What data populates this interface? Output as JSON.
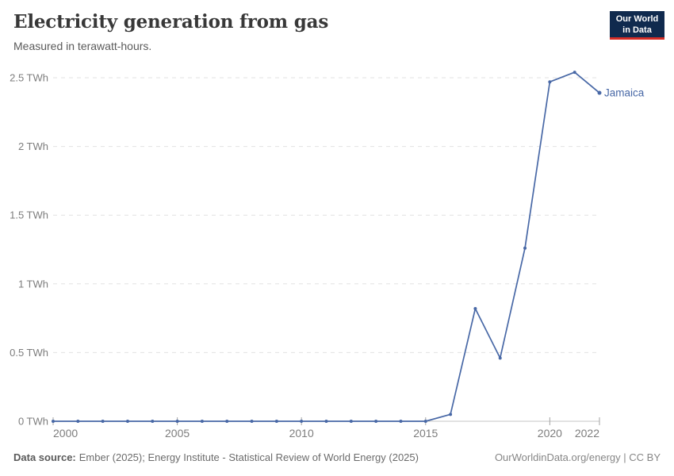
{
  "header": {
    "title": "Electricity generation from gas",
    "subtitle": "Measured in terawatt-hours.",
    "logo_line1": "Our World",
    "logo_line2": "in Data"
  },
  "chart_data": {
    "type": "line",
    "title": "Electricity generation from gas",
    "subtitle": "Measured in terawatt-hours.",
    "unit": "TWh",
    "xlim": [
      2000,
      2022
    ],
    "ylim": [
      0,
      2.5
    ],
    "grid": "horizontal-dashed",
    "legend_position": "end-of-line-label",
    "x_ticks": [
      2000,
      2005,
      2010,
      2015,
      2020,
      2022
    ],
    "y_ticks": [
      {
        "value": 0,
        "label": "0 TWh"
      },
      {
        "value": 0.5,
        "label": "0.5 TWh"
      },
      {
        "value": 1,
        "label": "1 TWh"
      },
      {
        "value": 1.5,
        "label": "1.5 TWh"
      },
      {
        "value": 2,
        "label": "2 TWh"
      },
      {
        "value": 2.5,
        "label": "2.5 TWh"
      }
    ],
    "series": [
      {
        "name": "Jamaica",
        "color": "#4868a6",
        "x": [
          2000,
          2001,
          2002,
          2003,
          2004,
          2005,
          2006,
          2007,
          2008,
          2009,
          2010,
          2011,
          2012,
          2013,
          2014,
          2015,
          2016,
          2017,
          2018,
          2019,
          2020,
          2021,
          2022
        ],
        "values": [
          0,
          0,
          0,
          0,
          0,
          0,
          0,
          0,
          0,
          0,
          0,
          0,
          0,
          0,
          0,
          0,
          0.05,
          0.82,
          0.46,
          1.26,
          2.47,
          2.54,
          2.39
        ]
      }
    ]
  },
  "footer": {
    "source_label": "Data source:",
    "source_text": "Ember (2025); Energy Institute - Statistical Review of World Energy (2025)",
    "credit": "OurWorldinData.org/energy | CC BY"
  },
  "colors": {
    "line": "#4868a6",
    "logo_navy": "#102a4e",
    "logo_red": "#d62d26",
    "grid": "#e2e2e2",
    "axis": "#c6c6c6",
    "tick": "#a3a3a3",
    "axis_label": "#7d7d7d",
    "title": "#383838"
  }
}
